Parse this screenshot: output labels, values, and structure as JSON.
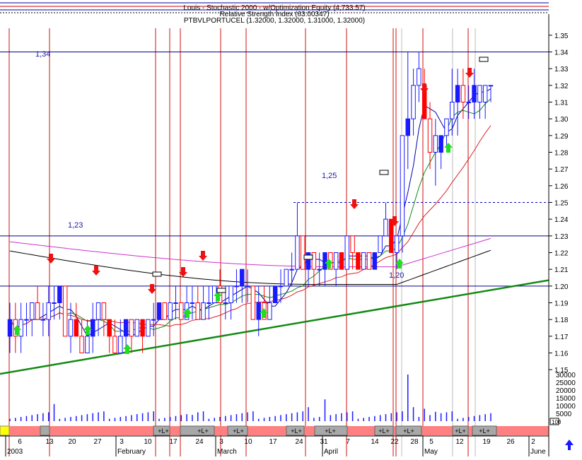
{
  "header": {
    "line1": "Louis - Stochastic 2000 - w/Optimization Equity (4,733.57)",
    "line2": "Relative Strength Index (63.00347)",
    "line3": "PTBVLPORTUCEL (1.32000, 1.32000, 1.31000, 1.32000)"
  },
  "chart_data": {
    "type": "candlestick",
    "symbol": "PTBVLPORTUCEL",
    "last_ohlc": {
      "open": 1.32,
      "high": 1.32,
      "low": 1.31,
      "close": 1.32
    },
    "ylim": [
      1.145,
      1.355
    ],
    "y_ticks": [
      "1.35",
      "1.34",
      "1.33",
      "1.32",
      "1.31",
      "1.30",
      "1.29",
      "1.28",
      "1.27",
      "1.26",
      "1.25",
      "1.24",
      "1.23",
      "1.22",
      "1.21",
      "1.20",
      "1.19",
      "1.18",
      "1.17",
      "1.16",
      "1.15"
    ],
    "volume_ticks": [
      "30000",
      "25000",
      "20000",
      "15000",
      "10000",
      "5000",
      "0"
    ],
    "volume_scale_label": "100",
    "horizontal_levels": [
      {
        "value": 1.34,
        "label": "1,34"
      },
      {
        "value": 1.23,
        "label": "1,23"
      },
      {
        "value": 1.2,
        "label": "1,20"
      },
      {
        "value": 1.25,
        "label": "1,25"
      }
    ],
    "x_day_labels": [
      "6",
      "13",
      "20",
      "27",
      "3",
      "10",
      "17",
      "24",
      "3",
      "10",
      "17",
      "24",
      "31",
      "7",
      "14",
      "22",
      "28",
      "5",
      "12",
      "19",
      "26",
      "2"
    ],
    "x_month_labels": [
      "2003",
      "February",
      "March",
      "April",
      "May",
      "June"
    ],
    "strip_label": "+L+",
    "bars": [
      {
        "o": 1.17,
        "h": 1.19,
        "l": 1.16,
        "c": 1.18
      },
      {
        "o": 1.18,
        "h": 1.19,
        "l": 1.16,
        "c": 1.17
      },
      {
        "o": 1.17,
        "h": 1.19,
        "l": 1.16,
        "c": 1.18
      },
      {
        "o": 1.18,
        "h": 1.19,
        "l": 1.17,
        "c": 1.18
      },
      {
        "o": 1.18,
        "h": 1.19,
        "l": 1.17,
        "c": 1.19
      },
      {
        "o": 1.19,
        "h": 1.2,
        "l": 1.18,
        "c": 1.18
      },
      {
        "o": 1.18,
        "h": 1.19,
        "l": 1.17,
        "c": 1.18
      },
      {
        "o": 1.18,
        "h": 1.2,
        "l": 1.17,
        "c": 1.19
      },
      {
        "o": 1.19,
        "h": 1.2,
        "l": 1.18,
        "c": 1.19
      },
      {
        "o": 1.19,
        "h": 1.2,
        "l": 1.18,
        "c": 1.2
      },
      {
        "o": 1.2,
        "h": 1.2,
        "l": 1.17,
        "c": 1.17
      },
      {
        "o": 1.17,
        "h": 1.19,
        "l": 1.16,
        "c": 1.18
      },
      {
        "o": 1.18,
        "h": 1.19,
        "l": 1.17,
        "c": 1.17
      },
      {
        "o": 1.17,
        "h": 1.18,
        "l": 1.16,
        "c": 1.16
      },
      {
        "o": 1.16,
        "h": 1.18,
        "l": 1.16,
        "c": 1.17
      },
      {
        "o": 1.17,
        "h": 1.19,
        "l": 1.16,
        "c": 1.18
      },
      {
        "o": 1.18,
        "h": 1.19,
        "l": 1.17,
        "c": 1.19
      },
      {
        "o": 1.19,
        "h": 1.19,
        "l": 1.17,
        "c": 1.18
      },
      {
        "o": 1.18,
        "h": 1.18,
        "l": 1.16,
        "c": 1.17
      },
      {
        "o": 1.17,
        "h": 1.18,
        "l": 1.16,
        "c": 1.16
      },
      {
        "o": 1.16,
        "h": 1.18,
        "l": 1.16,
        "c": 1.17
      },
      {
        "o": 1.17,
        "h": 1.18,
        "l": 1.16,
        "c": 1.18
      },
      {
        "o": 1.18,
        "h": 1.18,
        "l": 1.16,
        "c": 1.17
      },
      {
        "o": 1.17,
        "h": 1.18,
        "l": 1.17,
        "c": 1.18
      },
      {
        "o": 1.18,
        "h": 1.18,
        "l": 1.16,
        "c": 1.17
      },
      {
        "o": 1.17,
        "h": 1.18,
        "l": 1.17,
        "c": 1.18
      },
      {
        "o": 1.18,
        "h": 1.19,
        "l": 1.17,
        "c": 1.18
      },
      {
        "o": 1.18,
        "h": 1.19,
        "l": 1.18,
        "c": 1.19
      },
      {
        "o": 1.19,
        "h": 1.19,
        "l": 1.18,
        "c": 1.18
      },
      {
        "o": 1.18,
        "h": 1.19,
        "l": 1.18,
        "c": 1.19
      },
      {
        "o": 1.19,
        "h": 1.2,
        "l": 1.18,
        "c": 1.19
      },
      {
        "o": 1.19,
        "h": 1.19,
        "l": 1.18,
        "c": 1.18
      },
      {
        "o": 1.18,
        "h": 1.2,
        "l": 1.18,
        "c": 1.19
      },
      {
        "o": 1.19,
        "h": 1.2,
        "l": 1.18,
        "c": 1.19
      },
      {
        "o": 1.19,
        "h": 1.2,
        "l": 1.18,
        "c": 1.18
      },
      {
        "o": 1.18,
        "h": 1.2,
        "l": 1.18,
        "c": 1.19
      },
      {
        "o": 1.19,
        "h": 1.2,
        "l": 1.18,
        "c": 1.19
      },
      {
        "o": 1.19,
        "h": 1.2,
        "l": 1.19,
        "c": 1.2
      },
      {
        "o": 1.2,
        "h": 1.21,
        "l": 1.19,
        "c": 1.19
      },
      {
        "o": 1.19,
        "h": 1.2,
        "l": 1.18,
        "c": 1.19
      },
      {
        "o": 1.19,
        "h": 1.2,
        "l": 1.18,
        "c": 1.2
      },
      {
        "o": 1.2,
        "h": 1.21,
        "l": 1.19,
        "c": 1.2
      },
      {
        "o": 1.2,
        "h": 1.21,
        "l": 1.19,
        "c": 1.21
      },
      {
        "o": 1.2,
        "h": 1.21,
        "l": 1.19,
        "c": 1.2
      },
      {
        "o": 1.2,
        "h": 1.2,
        "l": 1.18,
        "c": 1.18
      },
      {
        "o": 1.18,
        "h": 1.2,
        "l": 1.17,
        "c": 1.19
      },
      {
        "o": 1.19,
        "h": 1.2,
        "l": 1.18,
        "c": 1.18
      },
      {
        "o": 1.18,
        "h": 1.2,
        "l": 1.18,
        "c": 1.19
      },
      {
        "o": 1.19,
        "h": 1.2,
        "l": 1.19,
        "c": 1.2
      },
      {
        "o": 1.2,
        "h": 1.21,
        "l": 1.19,
        "c": 1.2
      },
      {
        "o": 1.2,
        "h": 1.21,
        "l": 1.2,
        "c": 1.21
      },
      {
        "o": 1.21,
        "h": 1.22,
        "l": 1.2,
        "c": 1.21
      },
      {
        "o": 1.21,
        "h": 1.25,
        "l": 1.21,
        "c": 1.23
      },
      {
        "o": 1.23,
        "h": 1.23,
        "l": 1.21,
        "c": 1.21
      },
      {
        "o": 1.21,
        "h": 1.22,
        "l": 1.2,
        "c": 1.22
      },
      {
        "o": 1.22,
        "h": 1.22,
        "l": 1.2,
        "c": 1.21
      },
      {
        "o": 1.21,
        "h": 1.22,
        "l": 1.2,
        "c": 1.21
      },
      {
        "o": 1.21,
        "h": 1.22,
        "l": 1.2,
        "c": 1.22
      },
      {
        "o": 1.22,
        "h": 1.22,
        "l": 1.21,
        "c": 1.21
      },
      {
        "o": 1.21,
        "h": 1.22,
        "l": 1.2,
        "c": 1.22
      },
      {
        "o": 1.22,
        "h": 1.22,
        "l": 1.21,
        "c": 1.21
      },
      {
        "o": 1.21,
        "h": 1.23,
        "l": 1.21,
        "c": 1.23
      },
      {
        "o": 1.23,
        "h": 1.23,
        "l": 1.21,
        "c": 1.22
      },
      {
        "o": 1.22,
        "h": 1.22,
        "l": 1.21,
        "c": 1.21
      },
      {
        "o": 1.21,
        "h": 1.22,
        "l": 1.21,
        "c": 1.22
      },
      {
        "o": 1.22,
        "h": 1.22,
        "l": 1.21,
        "c": 1.21
      },
      {
        "o": 1.21,
        "h": 1.22,
        "l": 1.21,
        "c": 1.22
      },
      {
        "o": 1.22,
        "h": 1.23,
        "l": 1.22,
        "c": 1.23
      },
      {
        "o": 1.23,
        "h": 1.25,
        "l": 1.23,
        "c": 1.24
      },
      {
        "o": 1.24,
        "h": 1.24,
        "l": 1.22,
        "c": 1.22
      },
      {
        "o": 1.22,
        "h": 1.23,
        "l": 1.21,
        "c": 1.23
      },
      {
        "o": 1.23,
        "h": 1.29,
        "l": 1.22,
        "c": 1.29
      },
      {
        "o": 1.29,
        "h": 1.34,
        "l": 1.27,
        "c": 1.3
      },
      {
        "o": 1.3,
        "h": 1.33,
        "l": 1.29,
        "c": 1.32
      },
      {
        "o": 1.32,
        "h": 1.34,
        "l": 1.31,
        "c": 1.33
      },
      {
        "o": 1.32,
        "h": 1.33,
        "l": 1.3,
        "c": 1.3
      },
      {
        "o": 1.3,
        "h": 1.31,
        "l": 1.27,
        "c": 1.28
      },
      {
        "o": 1.28,
        "h": 1.3,
        "l": 1.26,
        "c": 1.29
      },
      {
        "o": 1.28,
        "h": 1.29,
        "l": 1.27,
        "c": 1.29
      },
      {
        "o": 1.29,
        "h": 1.3,
        "l": 1.28,
        "c": 1.3
      },
      {
        "o": 1.3,
        "h": 1.33,
        "l": 1.29,
        "c": 1.31
      },
      {
        "o": 1.31,
        "h": 1.33,
        "l": 1.29,
        "c": 1.32
      },
      {
        "o": 1.32,
        "h": 1.33,
        "l": 1.3,
        "c": 1.31
      },
      {
        "o": 1.31,
        "h": 1.32,
        "l": 1.3,
        "c": 1.31
      },
      {
        "o": 1.31,
        "h": 1.33,
        "l": 1.3,
        "c": 1.32
      },
      {
        "o": 1.31,
        "h": 1.32,
        "l": 1.3,
        "c": 1.32
      },
      {
        "o": 1.31,
        "h": 1.32,
        "l": 1.3,
        "c": 1.32
      },
      {
        "o": 1.32,
        "h": 1.32,
        "l": 1.31,
        "c": 1.32
      }
    ]
  },
  "colors": {
    "up": "#1a1aff",
    "down": "#ff0000",
    "trendline": "#138a13",
    "ma_fast": "#0000aa",
    "ma_green": "#138a13",
    "ma_red": "#dd2222",
    "ma_magenta": "#cc33cc",
    "ma_black": "#000000",
    "buy_arrow": "#22dd22",
    "sell_arrow": "#ee1111",
    "level_line": "#00008b",
    "strip_red": "#ff8080",
    "strip_gray": "#a8a8a8",
    "strip_yellow": "#ffff00"
  }
}
